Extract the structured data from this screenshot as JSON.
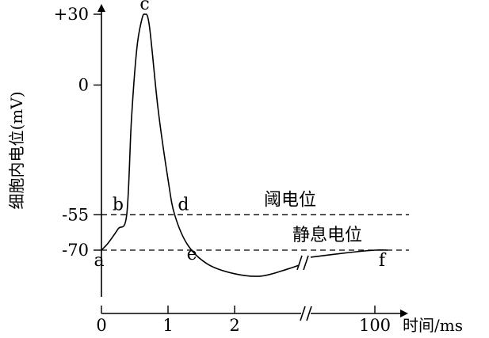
{
  "chart_data": {
    "type": "line",
    "ylabel": "细胞内电位(mV)",
    "xlabel": "时间/ms",
    "y_ticks": [
      "+30",
      "0",
      "-55",
      "-70"
    ],
    "x_ticks": [
      "0",
      "1",
      "2",
      "100"
    ],
    "ylim": [
      -85,
      33
    ],
    "reference_lines": [
      {
        "label": "阈电位",
        "y": -55
      },
      {
        "label": "静息电位",
        "y": -70
      }
    ],
    "series": [
      {
        "points": [
          {
            "x": 0.0,
            "y": -70
          },
          {
            "x": 0.1,
            "y": -67
          },
          {
            "x": 0.25,
            "y": -61
          },
          {
            "x": 0.38,
            "y": -55
          },
          {
            "x": 0.45,
            "y": -15
          },
          {
            "x": 0.53,
            "y": 15
          },
          {
            "x": 0.6,
            "y": 27
          },
          {
            "x": 0.65,
            "y": 30
          },
          {
            "x": 0.72,
            "y": 25
          },
          {
            "x": 0.85,
            "y": -10
          },
          {
            "x": 1.0,
            "y": -40
          },
          {
            "x": 1.1,
            "y": -55
          },
          {
            "x": 1.3,
            "y": -68
          },
          {
            "x": 1.6,
            "y": -76
          },
          {
            "x": 2.0,
            "y": -80
          },
          {
            "x": 2.4,
            "y": -81
          },
          {
            "x": 2.8,
            "y": -78
          },
          {
            "x": 3.0,
            "y": -76
          },
          {
            "x": 95,
            "y": -73
          },
          {
            "x": 98,
            "y": -71
          },
          {
            "x": 100,
            "y": -70
          },
          {
            "x": 101,
            "y": -70
          }
        ]
      }
    ],
    "points_labels": [
      {
        "label": "a",
        "x": 0.0,
        "y": -70
      },
      {
        "label": "b",
        "x": 0.38,
        "y": -55
      },
      {
        "label": "c",
        "x": 0.65,
        "y": 30
      },
      {
        "label": "d",
        "x": 1.1,
        "y": -55
      },
      {
        "label": "e",
        "x": 1.3,
        "y": -68
      },
      {
        "label": "f",
        "x": 100,
        "y": -70
      }
    ]
  }
}
